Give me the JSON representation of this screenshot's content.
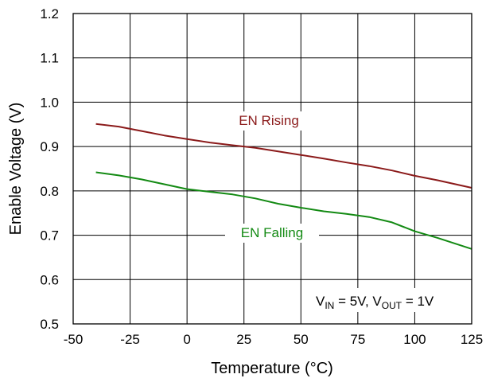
{
  "chart_data": {
    "type": "line",
    "xlabel": "Temperature (°C)",
    "ylabel": "Enable Voltage (V)",
    "xlim": [
      -50,
      125
    ],
    "ylim": [
      0.5,
      1.2
    ],
    "x_ticks": [
      -50,
      -25,
      0,
      25,
      50,
      75,
      100,
      125
    ],
    "y_ticks": [
      0.5,
      0.6,
      0.7,
      0.8,
      0.9,
      1.0,
      1.1,
      1.2
    ],
    "x_tick_labels": [
      "-50",
      "-25",
      "0",
      "25",
      "50",
      "75",
      "100",
      "125"
    ],
    "y_tick_labels": [
      "0.5",
      "0.6",
      "0.7",
      "0.8",
      "0.9",
      "1.0",
      "1.1",
      "1.2"
    ],
    "grid": true,
    "series": [
      {
        "name": "EN Rising",
        "color": "#8b1a1a",
        "x": [
          -40,
          -30,
          -20,
          -10,
          0,
          10,
          20,
          30,
          40,
          50,
          60,
          70,
          80,
          90,
          100,
          110,
          125
        ],
        "y": [
          0.951,
          0.945,
          0.935,
          0.925,
          0.917,
          0.909,
          0.903,
          0.897,
          0.889,
          0.881,
          0.873,
          0.864,
          0.856,
          0.846,
          0.834,
          0.824,
          0.807
        ]
      },
      {
        "name": "EN Falling",
        "color": "#138a13",
        "x": [
          -40,
          -30,
          -20,
          -10,
          0,
          10,
          20,
          30,
          40,
          50,
          60,
          70,
          80,
          90,
          100,
          110,
          125
        ],
        "y": [
          0.842,
          0.835,
          0.826,
          0.815,
          0.804,
          0.798,
          0.792,
          0.783,
          0.771,
          0.762,
          0.754,
          0.748,
          0.741,
          0.729,
          0.709,
          0.694,
          0.669
        ]
      }
    ],
    "annotation": {
      "prefix_v": "V",
      "in_sub": "IN",
      "in_value": " = 5V, ",
      "out_v": "V",
      "out_sub": "OUT",
      "out_value": " = 1V"
    }
  }
}
